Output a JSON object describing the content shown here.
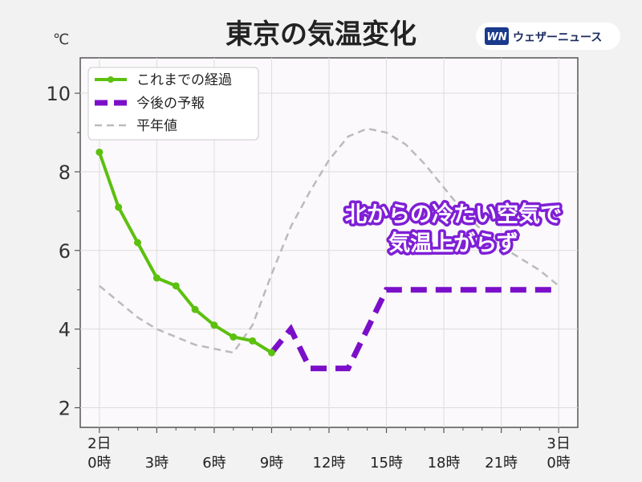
{
  "logo": {
    "mark": "WN",
    "text": "ウェザーニュース"
  },
  "colors": {
    "observed": "#5cc00f",
    "forecast": "#7b0fc9",
    "normal": "#bbbbbb",
    "annotation_outline": "#7f1fd6",
    "annotation_text": "#ffffff",
    "plot_bg": "#fbf9fb",
    "page_bg": "#f2f2f2"
  },
  "chart_data": {
    "type": "line",
    "title": "東京の気温変化",
    "ylabel": "℃",
    "ylim": [
      1.5,
      10.9
    ],
    "xlim": [
      -1,
      25
    ],
    "yticks": [
      2,
      4,
      6,
      8,
      10
    ],
    "xticks": [
      {
        "x": 0,
        "line1": "2日",
        "line2": "0時"
      },
      {
        "x": 3,
        "line1": "",
        "line2": "3時"
      },
      {
        "x": 6,
        "line1": "",
        "line2": "6時"
      },
      {
        "x": 9,
        "line1": "",
        "line2": "9時"
      },
      {
        "x": 12,
        "line1": "",
        "line2": "12時"
      },
      {
        "x": 15,
        "line1": "",
        "line2": "15時"
      },
      {
        "x": 18,
        "line1": "",
        "line2": "18時"
      },
      {
        "x": 21,
        "line1": "",
        "line2": "21時"
      },
      {
        "x": 24,
        "line1": "3日",
        "line2": "0時"
      }
    ],
    "grid": true,
    "legend_position": "top-left",
    "series": [
      {
        "name": "これまでの経過",
        "style": "solid-markers",
        "x": [
          0,
          1,
          2,
          3,
          4,
          5,
          6,
          7,
          8,
          9
        ],
        "y": [
          8.5,
          7.1,
          6.2,
          5.3,
          5.1,
          4.5,
          4.1,
          3.8,
          3.7,
          3.4
        ]
      },
      {
        "name": "今後の予報",
        "style": "dashed-thick",
        "x": [
          9,
          10,
          11,
          12,
          13,
          14,
          15,
          16,
          17,
          18,
          19,
          20,
          21,
          22,
          23,
          24
        ],
        "y": [
          3.4,
          4.0,
          3.0,
          3.0,
          3.0,
          4.0,
          5.0,
          5.0,
          5.0,
          5.0,
          5.0,
          5.0,
          5.0,
          5.0,
          5.0,
          5.0
        ]
      },
      {
        "name": "平年値",
        "style": "dashed-thin",
        "x": [
          0,
          1,
          2,
          3,
          4,
          5,
          6,
          7,
          8,
          9,
          10,
          11,
          12,
          13,
          14,
          15,
          16,
          17,
          18,
          19,
          20,
          21,
          22,
          23,
          24
        ],
        "y": [
          5.1,
          4.7,
          4.3,
          4.0,
          3.8,
          3.6,
          3.5,
          3.4,
          4.1,
          5.4,
          6.6,
          7.5,
          8.3,
          8.9,
          9.1,
          9.0,
          8.7,
          8.2,
          7.6,
          7.0,
          6.5,
          6.1,
          5.8,
          5.5,
          5.1
        ]
      }
    ],
    "annotation": {
      "line1": "北からの冷たい空気で",
      "line2": "気温上がらず"
    }
  }
}
